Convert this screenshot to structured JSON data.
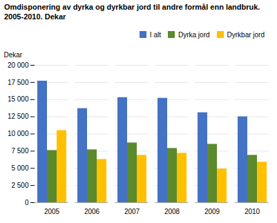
{
  "chart_data": {
    "type": "bar",
    "title": "Omdisponering av dyrka og dyrkbar jord til andre formål enn landbruk.",
    "subtitle": "2005-2010. Dekar",
    "ylabel": "Dekar",
    "categories": [
      2005,
      2006,
      2007,
      2008,
      2009,
      2010
    ],
    "series": [
      {
        "name": "I alt",
        "color": "#4472C4",
        "values": [
          17700,
          13700,
          15300,
          15200,
          13100,
          12500
        ]
      },
      {
        "name": "Dyrka jord",
        "color": "#5B8A2D",
        "values": [
          7600,
          7700,
          8700,
          7900,
          8500,
          6900
        ]
      },
      {
        "name": "Dyrkbar jord",
        "color": "#FFC000",
        "values": [
          10500,
          6300,
          6900,
          7200,
          4900,
          5900
        ]
      }
    ],
    "ylim": [
      0,
      20000
    ],
    "yticks": [
      0,
      {
        "value": 2500,
        "label": "2 500"
      },
      {
        "value": 5000,
        "label": "5 000"
      },
      {
        "value": 7500,
        "label": "7 500"
      },
      {
        "value": 10000,
        "label": "10 000"
      },
      {
        "value": 12500,
        "label": "12 500"
      },
      {
        "value": 15000,
        "label": "15 000"
      },
      {
        "value": 17500,
        "label": "17 500"
      },
      {
        "value": 20000,
        "label": "20 000"
      }
    ],
    "grid": true,
    "legend": "upper right"
  }
}
